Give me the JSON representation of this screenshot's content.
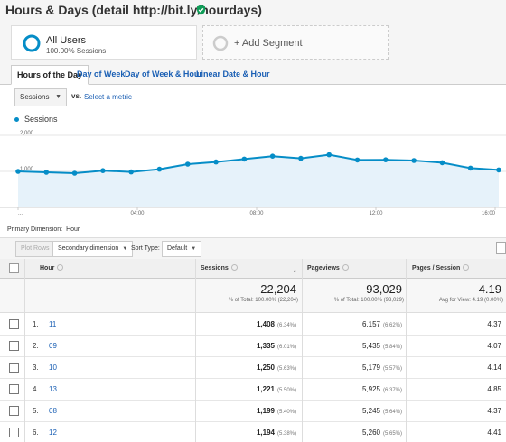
{
  "header": {
    "title": "Hours & Days (detail http://bit.ly/hourdays)",
    "verified_icon": "shield-check-icon"
  },
  "segments": {
    "active": {
      "name": "All Users",
      "sub": "100.00% Sessions"
    },
    "add_label": "+ Add Segment"
  },
  "tabs": [
    {
      "label": "Hours of the Day",
      "active": true
    },
    {
      "label": "Day of Week"
    },
    {
      "label": "Day of Week & Hour"
    },
    {
      "label": "Linear Date & Hour"
    }
  ],
  "metric_selector": {
    "selected": "Sessions",
    "vs": "vs.",
    "select_metric": "Select a metric"
  },
  "chart_data": {
    "type": "area",
    "series": [
      {
        "name": "Sessions",
        "values": [
          1000,
          975,
          950,
          1020,
          985,
          1060,
          1200,
          1260,
          1340,
          1420,
          1360,
          1460,
          1315,
          1320,
          1300,
          1240,
          1090,
          1040
        ]
      }
    ],
    "x_tick_labels": [
      "...",
      "04:00",
      "08:00",
      "12:00",
      "16:00"
    ],
    "y_tick_labels": [
      "2,000",
      "1,000"
    ],
    "ylim": [
      0,
      2000
    ],
    "colors": {
      "line": "#058dc7",
      "fill": "#e6f2fa"
    }
  },
  "primary_dimension": {
    "label": "Primary Dimension:",
    "value": "Hour"
  },
  "toolbar": {
    "plot_rows": "Plot Rows",
    "secondary_dimension": "Secondary dimension",
    "sort_type_label": "Sort Type:",
    "sort_type_value": "Default"
  },
  "table": {
    "headers": {
      "hour": "Hour",
      "sessions": "Sessions",
      "pageviews": "Pageviews",
      "pages_session": "Pages / Session"
    },
    "totals": {
      "sessions": "22,204",
      "sessions_sub": "% of Total: 100.00% (22,204)",
      "pageviews": "93,029",
      "pageviews_sub": "% of Total: 100.00% (93,029)",
      "pages_session": "4.19",
      "pages_session_sub": "Avg for View: 4.19 (0.00%)"
    },
    "rows": [
      {
        "rank": "1.",
        "hour": "11",
        "sessions": "1,408",
        "sessions_pct": "(6.34%)",
        "pageviews": "6,157",
        "pageviews_pct": "(6.62%)",
        "pages_session": "4.37"
      },
      {
        "rank": "2.",
        "hour": "09",
        "sessions": "1,335",
        "sessions_pct": "(6.01%)",
        "pageviews": "5,435",
        "pageviews_pct": "(5.84%)",
        "pages_session": "4.07"
      },
      {
        "rank": "3.",
        "hour": "10",
        "sessions": "1,250",
        "sessions_pct": "(5.63%)",
        "pageviews": "5,179",
        "pageviews_pct": "(5.57%)",
        "pages_session": "4.14"
      },
      {
        "rank": "4.",
        "hour": "13",
        "sessions": "1,221",
        "sessions_pct": "(5.50%)",
        "pageviews": "5,925",
        "pageviews_pct": "(6.37%)",
        "pages_session": "4.85"
      },
      {
        "rank": "5.",
        "hour": "08",
        "sessions": "1,199",
        "sessions_pct": "(5.40%)",
        "pageviews": "5,245",
        "pageviews_pct": "(5.64%)",
        "pages_session": "4.37"
      },
      {
        "rank": "6.",
        "hour": "12",
        "sessions": "1,194",
        "sessions_pct": "(5.38%)",
        "pageviews": "5,260",
        "pageviews_pct": "(5.65%)",
        "pages_session": "4.41"
      }
    ]
  }
}
